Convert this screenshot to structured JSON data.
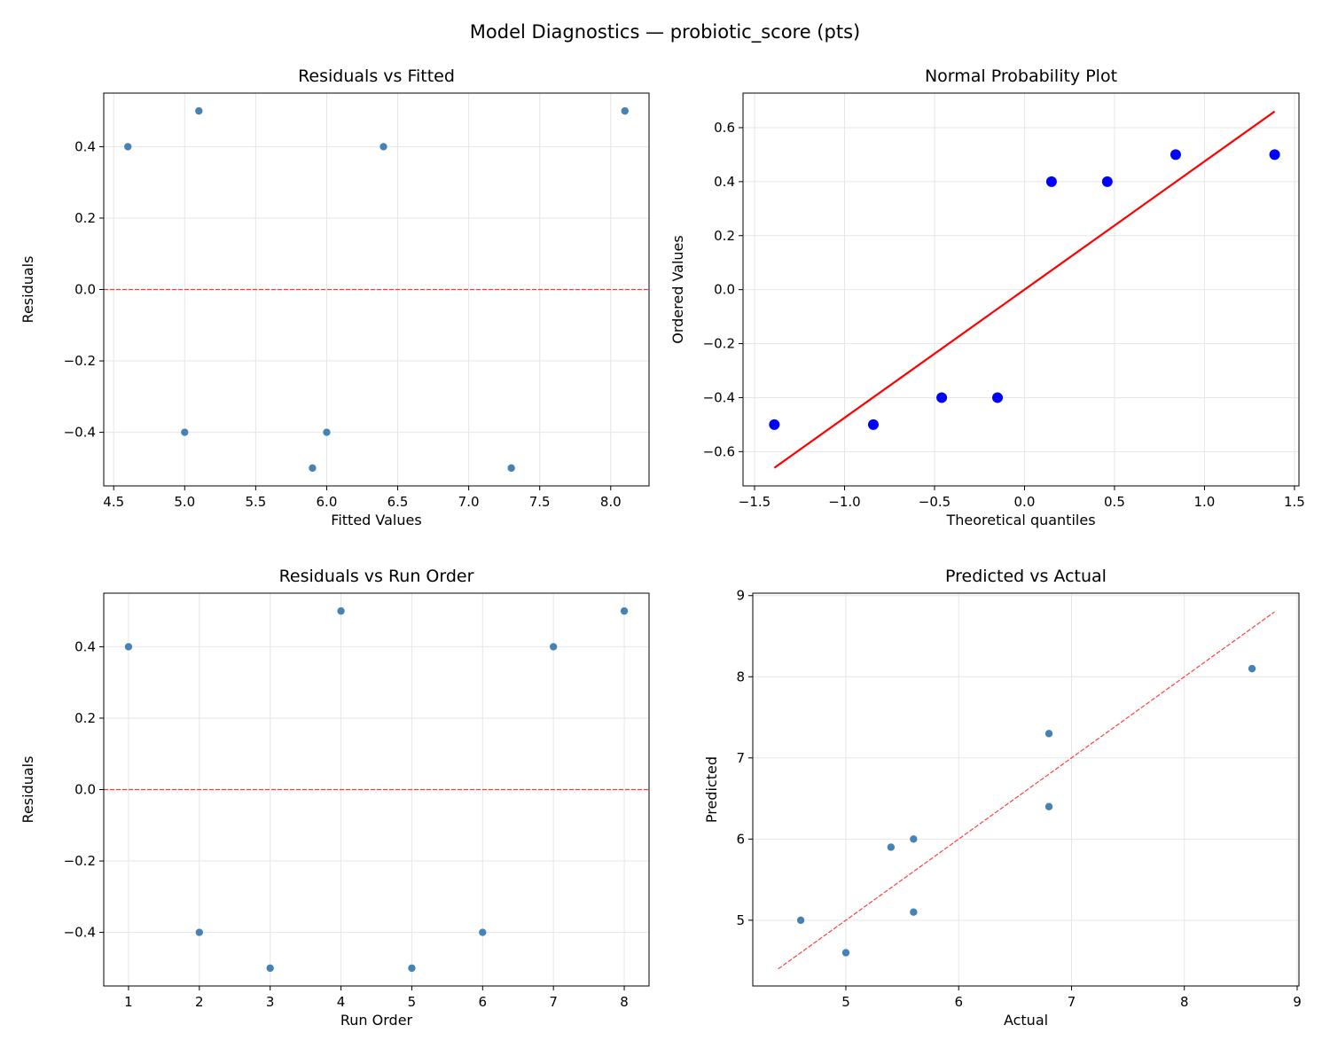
{
  "title": "Model Diagnostics — probiotic_score (pts)",
  "colors": {
    "point": "#4682b4",
    "qq_point": "#0000ff",
    "qq_line": "#ff0000",
    "ref_line": "#ff0000",
    "grid": "#e6e6e6"
  },
  "chart_data": [
    {
      "type": "scatter",
      "title": "Residuals vs Fitted",
      "xlabel": "Fitted Values",
      "ylabel": "Residuals",
      "xlim": [
        4.43,
        8.27
      ],
      "ylim": [
        -0.55,
        0.55
      ],
      "xticks": [
        4.5,
        5.0,
        5.5,
        6.0,
        6.5,
        7.0,
        7.5,
        8.0
      ],
      "xtick_labels": [
        "4.5",
        "5.0",
        "5.5",
        "6.0",
        "6.5",
        "7.0",
        "7.5",
        "8.0"
      ],
      "yticks": [
        -0.4,
        -0.2,
        0.0,
        0.2,
        0.4
      ],
      "ytick_labels": [
        "−0.4",
        "−0.2",
        "0.0",
        "0.2",
        "0.4"
      ],
      "grid": true,
      "x": [
        4.6,
        5.0,
        5.9,
        5.1,
        7.3,
        6.0,
        6.4,
        8.1
      ],
      "y": [
        0.4,
        -0.4,
        -0.5,
        0.5,
        -0.5,
        -0.4,
        0.4,
        0.5
      ],
      "hline": 0
    },
    {
      "type": "scatter",
      "title": "Normal Probability Plot",
      "xlabel": "Theoretical quantiles",
      "ylabel": "Ordered Values",
      "xlim": [
        -1.564,
        1.525
      ],
      "ylim": [
        -0.727,
        0.728
      ],
      "xticks": [
        -1.5,
        -1.0,
        -0.5,
        0.0,
        0.5,
        1.0,
        1.5
      ],
      "xtick_labels": [
        "−1.5",
        "−1.0",
        "−0.5",
        "0.0",
        "0.5",
        "1.0",
        "1.5"
      ],
      "yticks": [
        -0.6,
        -0.4,
        -0.2,
        0.0,
        0.2,
        0.4,
        0.6
      ],
      "ytick_labels": [
        "−0.6",
        "−0.4",
        "−0.2",
        "0.0",
        "0.2",
        "0.4",
        "0.6"
      ],
      "grid": true,
      "x": [
        -1.39,
        -0.84,
        -0.46,
        -0.15,
        0.15,
        0.46,
        0.84,
        1.39
      ],
      "y": [
        -0.5,
        -0.5,
        -0.4,
        -0.4,
        0.4,
        0.4,
        0.5,
        0.5
      ],
      "fit_line": {
        "x": [
          -1.39,
          1.39
        ],
        "y": [
          -0.66,
          0.66
        ]
      }
    },
    {
      "type": "scatter",
      "title": "Residuals vs Run Order",
      "xlabel": "Run Order",
      "ylabel": "Residuals",
      "xlim": [
        0.65,
        8.35
      ],
      "ylim": [
        -0.55,
        0.55
      ],
      "xticks": [
        1,
        2,
        3,
        4,
        5,
        6,
        7,
        8
      ],
      "xtick_labels": [
        "1",
        "2",
        "3",
        "4",
        "5",
        "6",
        "7",
        "8"
      ],
      "yticks": [
        -0.4,
        -0.2,
        0.0,
        0.2,
        0.4
      ],
      "ytick_labels": [
        "−0.4",
        "−0.2",
        "0.0",
        "0.2",
        "0.4"
      ],
      "grid": true,
      "x": [
        1,
        2,
        3,
        4,
        5,
        6,
        7,
        8
      ],
      "y": [
        0.4,
        -0.4,
        -0.5,
        0.5,
        -0.5,
        -0.4,
        0.4,
        0.5
      ],
      "hline": 0
    },
    {
      "type": "scatter",
      "title": "Predicted vs Actual",
      "xlabel": "Actual",
      "ylabel": "Predicted",
      "xlim": [
        4.175,
        9.016
      ],
      "ylim": [
        4.19,
        9.03
      ],
      "xticks": [
        5,
        6,
        7,
        8,
        9
      ],
      "xtick_labels": [
        "5",
        "6",
        "7",
        "8",
        "9"
      ],
      "yticks": [
        5,
        6,
        7,
        8,
        9
      ],
      "ytick_labels": [
        "5",
        "6",
        "7",
        "8",
        "9"
      ],
      "grid": true,
      "x": [
        5.0,
        4.6,
        5.4,
        5.6,
        6.8,
        5.6,
        6.8,
        8.6
      ],
      "y": [
        4.6,
        5.0,
        5.9,
        5.1,
        7.3,
        6.0,
        6.4,
        8.1
      ],
      "diag": [
        4.4,
        8.8
      ]
    }
  ]
}
